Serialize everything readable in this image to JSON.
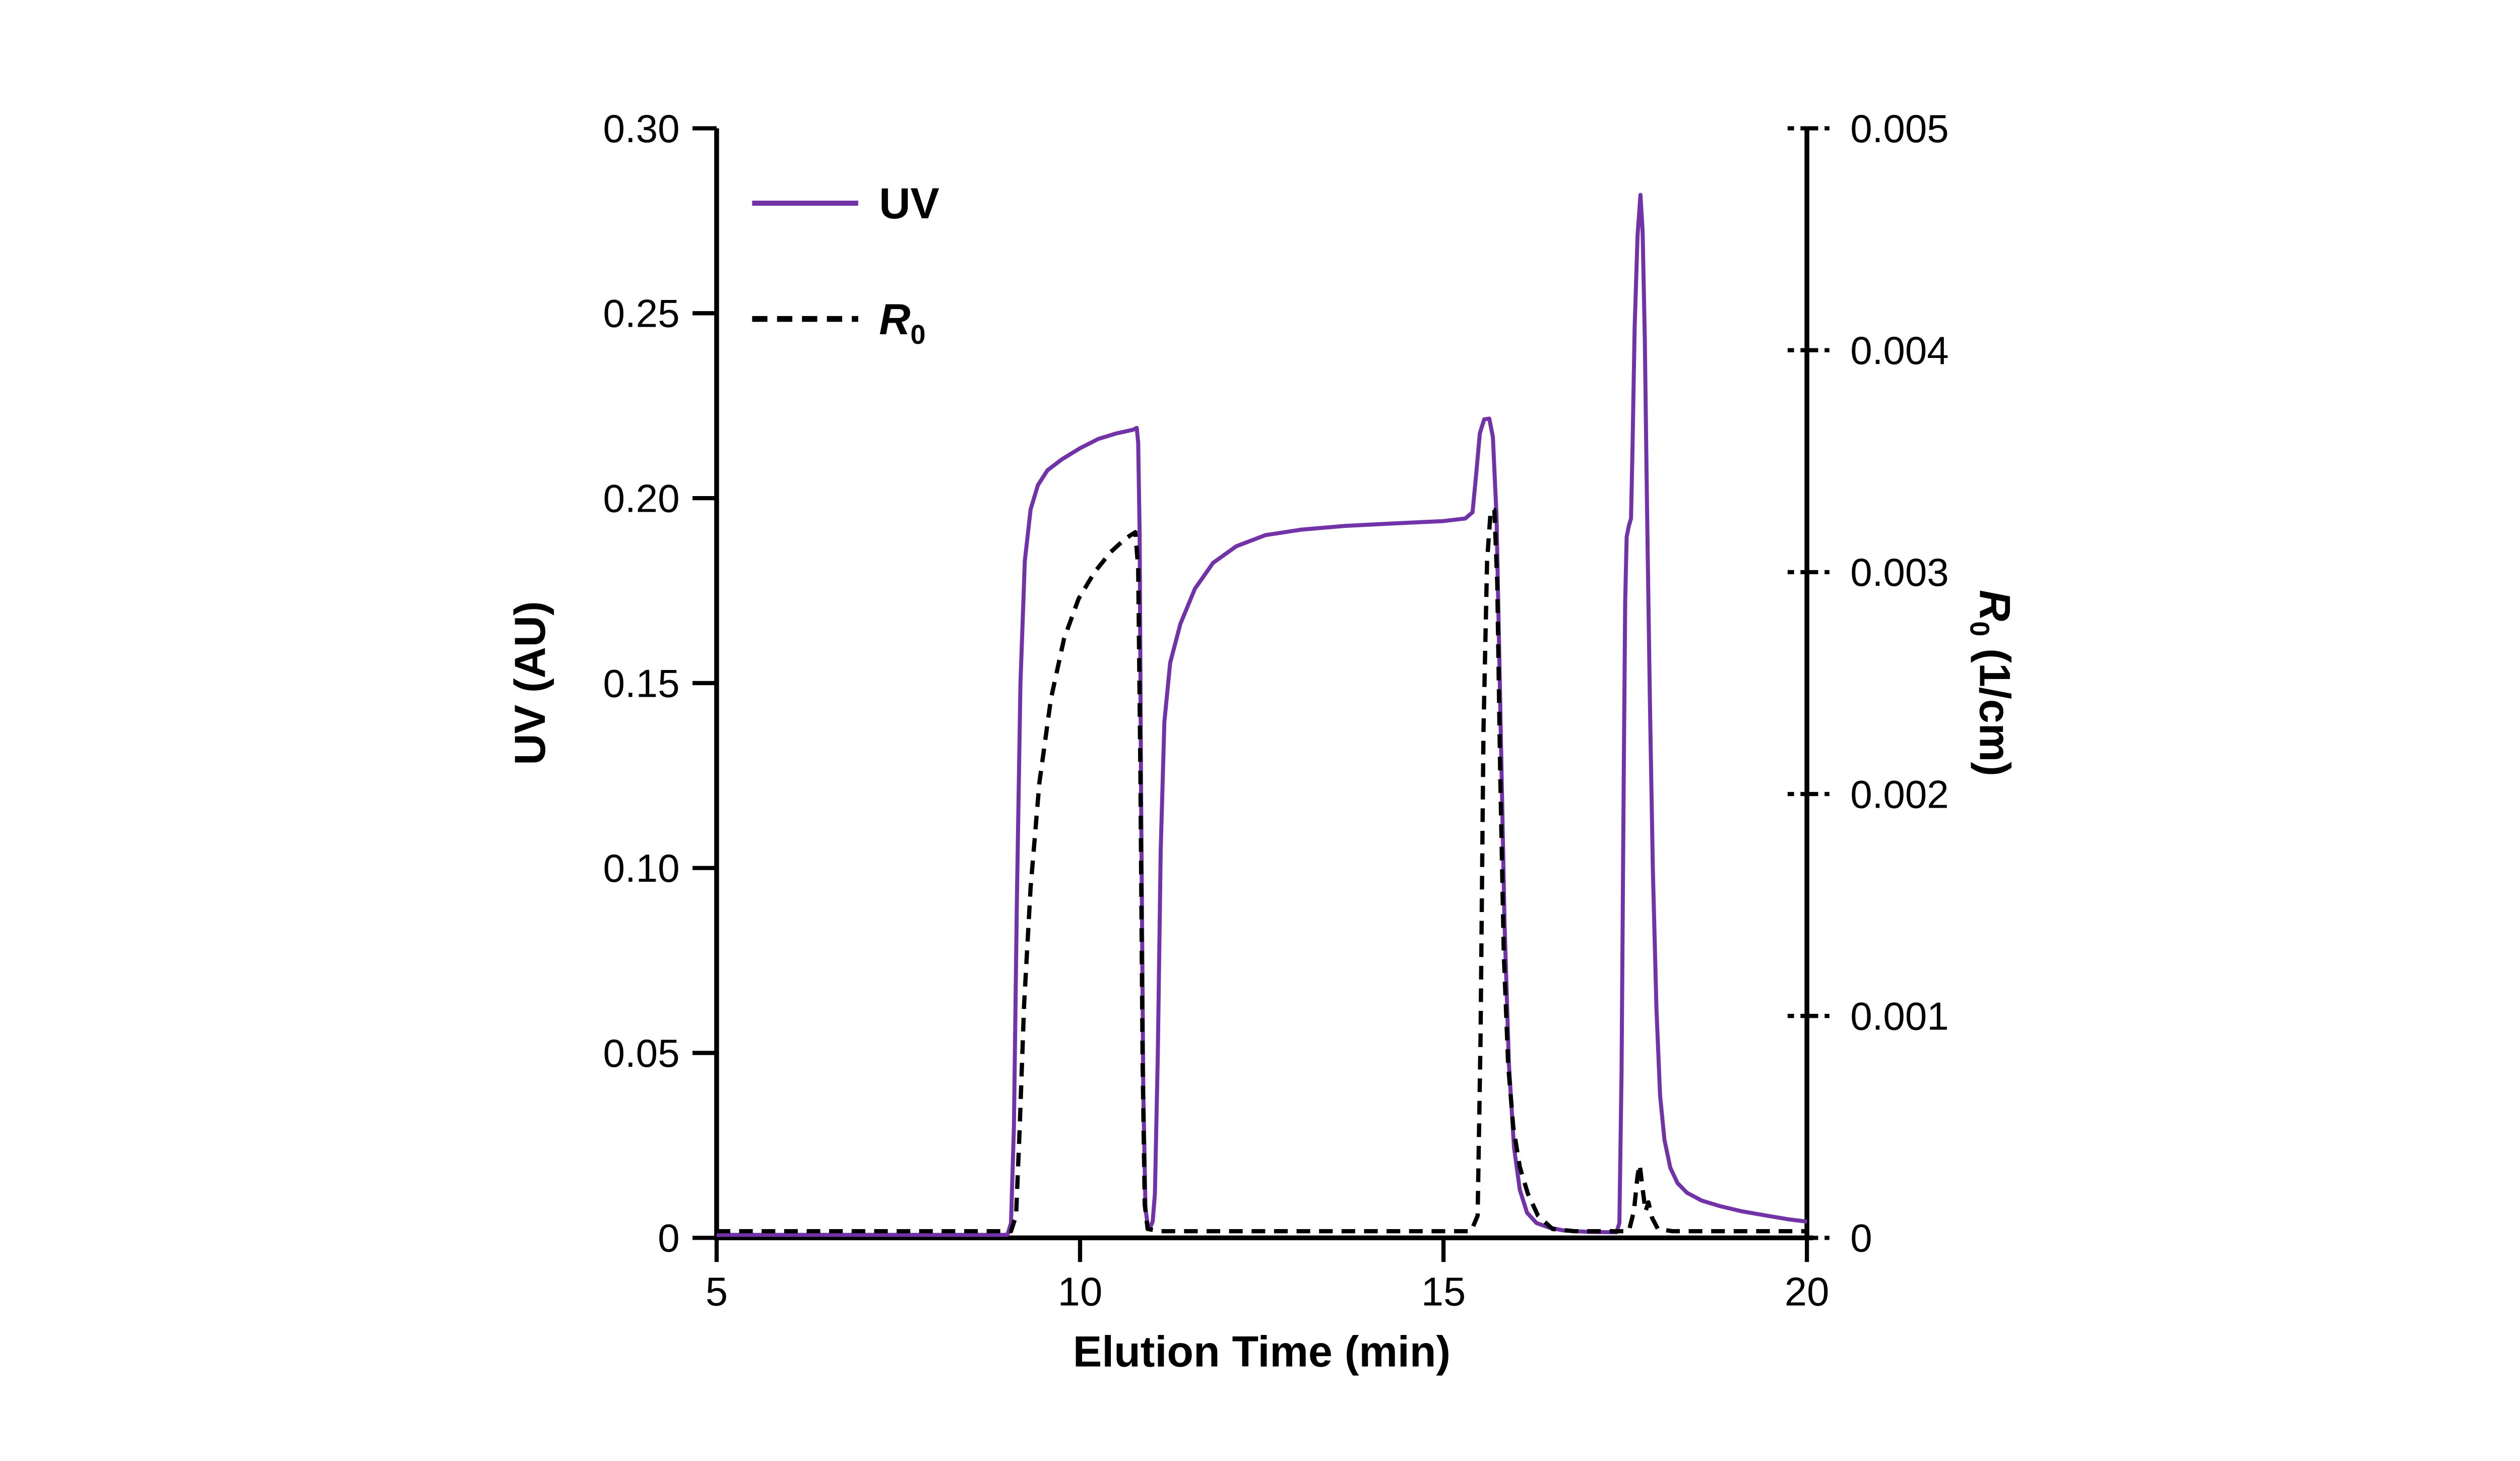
{
  "colors": {
    "uv": "#7233a8",
    "r0": "#000000",
    "axis": "#000000",
    "background": "#ffffff"
  },
  "labels": {
    "x_axis_title": "Elution Time (min)",
    "y_left_title": "UV (AU)",
    "y_right_main": "R",
    "y_right_sub": "0",
    "y_right_rest": " (1/cm)",
    "legend_uv": "UV",
    "legend_r0_main": "R",
    "legend_r0_sub": "0"
  },
  "chart_data": {
    "type": "line",
    "title": "",
    "xlabel": "Elution Time (min)",
    "ylabel_left": "UV (AU)",
    "ylabel_right": "R0 (1/cm)",
    "grid": false,
    "legend_position": "upper-left",
    "x_range": [
      5,
      20
    ],
    "x_ticks": [
      5,
      10,
      15,
      20
    ],
    "x_tick_labels": [
      "5",
      "10",
      "15",
      "20"
    ],
    "y_left_range": [
      0,
      0.3
    ],
    "y_left_ticks": [
      0,
      0.05,
      0.1,
      0.15,
      0.2,
      0.25,
      0.3
    ],
    "y_left_tick_labels": [
      "0",
      "0.05",
      "0.10",
      "0.15",
      "0.20",
      "0.25",
      "0.30"
    ],
    "y_right_range": [
      0,
      0.005
    ],
    "y_right_ticks": [
      0,
      0.001,
      0.002,
      0.003,
      0.004,
      0.005
    ],
    "y_right_tick_labels": [
      "0",
      "0.001",
      "0.002",
      "0.003",
      "0.004",
      "0.005"
    ],
    "legend": [
      {
        "label": "UV",
        "style": "solid",
        "color": "#7233a8"
      },
      {
        "label": "R0",
        "style": "dashed",
        "color": "#000000"
      }
    ],
    "series": [
      {
        "name": "UV",
        "axis": "left",
        "unit": "AU",
        "color": "#7233a8",
        "style": "solid",
        "points": [
          [
            5.0,
            0.0008
          ],
          [
            8.6,
            0.0008
          ],
          [
            9.0,
            0.0008
          ],
          [
            9.05,
            0.004
          ],
          [
            9.09,
            0.03
          ],
          [
            9.13,
            0.09
          ],
          [
            9.18,
            0.15
          ],
          [
            9.24,
            0.183
          ],
          [
            9.32,
            0.197
          ],
          [
            9.42,
            0.2035
          ],
          [
            9.55,
            0.2075
          ],
          [
            9.75,
            0.2105
          ],
          [
            10.0,
            0.2135
          ],
          [
            10.25,
            0.216
          ],
          [
            10.5,
            0.2175
          ],
          [
            10.73,
            0.2185
          ],
          [
            10.78,
            0.219
          ],
          [
            10.8,
            0.215
          ],
          [
            10.82,
            0.19
          ],
          [
            10.84,
            0.12
          ],
          [
            10.87,
            0.04
          ],
          [
            10.9,
            0.008
          ],
          [
            10.93,
            0.0035
          ],
          [
            10.97,
            0.003
          ],
          [
            11.0,
            0.0045
          ],
          [
            11.03,
            0.012
          ],
          [
            11.07,
            0.05
          ],
          [
            11.11,
            0.105
          ],
          [
            11.16,
            0.1395
          ],
          [
            11.24,
            0.1555
          ],
          [
            11.38,
            0.166
          ],
          [
            11.58,
            0.1755
          ],
          [
            11.83,
            0.1825
          ],
          [
            12.15,
            0.187
          ],
          [
            12.55,
            0.19
          ],
          [
            13.05,
            0.1915
          ],
          [
            13.65,
            0.1925
          ],
          [
            14.35,
            0.1932
          ],
          [
            15.0,
            0.1938
          ],
          [
            15.3,
            0.1945
          ],
          [
            15.4,
            0.1962
          ],
          [
            15.45,
            0.2065
          ],
          [
            15.5,
            0.2175
          ],
          [
            15.56,
            0.2213
          ],
          [
            15.63,
            0.2215
          ],
          [
            15.68,
            0.2165
          ],
          [
            15.73,
            0.195
          ],
          [
            15.78,
            0.145
          ],
          [
            15.84,
            0.085
          ],
          [
            15.9,
            0.047
          ],
          [
            15.97,
            0.0245
          ],
          [
            16.05,
            0.013
          ],
          [
            16.15,
            0.0068
          ],
          [
            16.28,
            0.004
          ],
          [
            16.45,
            0.0028
          ],
          [
            16.65,
            0.002
          ],
          [
            17.0,
            0.0016
          ],
          [
            17.38,
            0.0015
          ],
          [
            17.42,
            0.004
          ],
          [
            17.45,
            0.045
          ],
          [
            17.48,
            0.125
          ],
          [
            17.5,
            0.172
          ],
          [
            17.52,
            0.1895
          ],
          [
            17.55,
            0.1925
          ],
          [
            17.58,
            0.1945
          ],
          [
            17.6,
            0.213
          ],
          [
            17.63,
            0.246
          ],
          [
            17.67,
            0.271
          ],
          [
            17.71,
            0.282
          ],
          [
            17.74,
            0.272
          ],
          [
            17.77,
            0.243
          ],
          [
            17.8,
            0.198
          ],
          [
            17.84,
            0.145
          ],
          [
            17.88,
            0.1
          ],
          [
            17.93,
            0.062
          ],
          [
            17.98,
            0.0385
          ],
          [
            18.04,
            0.0265
          ],
          [
            18.12,
            0.019
          ],
          [
            18.22,
            0.0148
          ],
          [
            18.35,
            0.0122
          ],
          [
            18.55,
            0.0101
          ],
          [
            18.8,
            0.0086
          ],
          [
            19.1,
            0.0072
          ],
          [
            19.45,
            0.006
          ],
          [
            19.75,
            0.005
          ],
          [
            20.0,
            0.0044
          ]
        ]
      },
      {
        "name": "R0",
        "axis": "right",
        "unit": "1/cm",
        "color": "#000000",
        "style": "dashed",
        "points": [
          [
            5.0,
            3e-05
          ],
          [
            9.05,
            3e-05
          ],
          [
            9.12,
            0.0001
          ],
          [
            9.17,
            0.0005
          ],
          [
            9.23,
            0.00105
          ],
          [
            9.32,
            0.00158
          ],
          [
            9.44,
            0.00205
          ],
          [
            9.6,
            0.00243
          ],
          [
            9.78,
            0.0027
          ],
          [
            9.98,
            0.00288
          ],
          [
            10.2,
            0.003
          ],
          [
            10.42,
            0.00309
          ],
          [
            10.62,
            0.00315
          ],
          [
            10.76,
            0.00318
          ],
          [
            10.8,
            0.00302
          ],
          [
            10.83,
            0.0021
          ],
          [
            10.86,
            0.0008
          ],
          [
            10.89,
            0.00015
          ],
          [
            10.93,
            4e-05
          ],
          [
            11.1,
            3e-05
          ],
          [
            15.38,
            3e-05
          ],
          [
            15.47,
            0.0001
          ],
          [
            15.51,
            0.0009
          ],
          [
            15.55,
            0.00228
          ],
          [
            15.6,
            0.00305
          ],
          [
            15.65,
            0.00328
          ],
          [
            15.7,
            0.00328
          ],
          [
            15.74,
            0.00295
          ],
          [
            15.78,
            0.0021
          ],
          [
            15.83,
            0.00128
          ],
          [
            15.89,
            0.00078
          ],
          [
            15.96,
            0.0005
          ],
          [
            16.05,
            0.00032
          ],
          [
            16.16,
            0.0002
          ],
          [
            16.3,
            0.0001
          ],
          [
            16.5,
            4e-05
          ],
          [
            16.8,
            3e-05
          ],
          [
            17.55,
            3e-05
          ],
          [
            17.62,
            0.00012
          ],
          [
            17.67,
            0.00028
          ],
          [
            17.7,
            0.00033
          ],
          [
            17.74,
            0.00022
          ],
          [
            17.78,
            0.00012
          ],
          [
            17.82,
            0.00016
          ],
          [
            17.87,
            9e-05
          ],
          [
            17.95,
            4e-05
          ],
          [
            18.15,
            3e-05
          ],
          [
            20.0,
            3e-05
          ]
        ]
      }
    ]
  }
}
